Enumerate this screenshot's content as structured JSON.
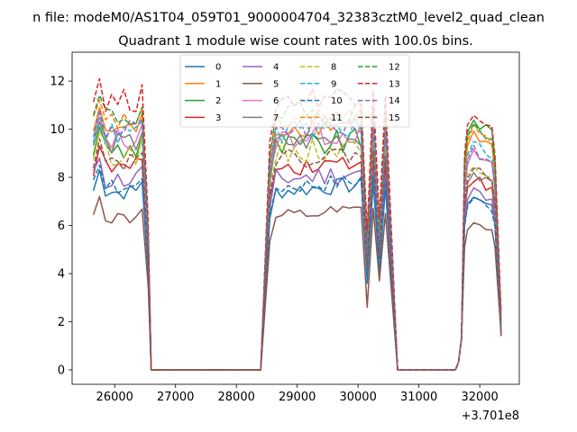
{
  "chart_data": {
    "type": "line",
    "suptitle": "n file: modeM0/AS1T04_059T01_9000004704_32383cztM0_level2_quad_clean",
    "title": "Quadrant 1 module wise count rates with 100.0s bins.",
    "xlabel": "",
    "ylabel": "",
    "x_offset_label": "+3.701e8",
    "xlim": [
      25300,
      32650
    ],
    "ylim": [
      -0.6,
      13.2
    ],
    "xticks": [
      26000,
      27000,
      28000,
      29000,
      30000,
      31000,
      32000
    ],
    "xtick_labels": [
      "26000",
      "27000",
      "28000",
      "29000",
      "30000",
      "31000",
      "32000"
    ],
    "yticks": [
      0,
      2,
      4,
      6,
      8,
      10,
      12
    ],
    "ytick_labels": [
      "0",
      "2",
      "4",
      "6",
      "8",
      "10",
      "12"
    ],
    "grid": false,
    "legend_position": "upper-center",
    "segments": [
      {
        "start": 25650,
        "n": 10
      },
      {
        "start": 28550,
        "n": 20
      },
      {
        "start": 31750,
        "n": 6
      }
    ],
    "series": [
      {
        "name": "0",
        "color": "#1f77b4",
        "dash": false,
        "base": 7.4,
        "noise": 0.35,
        "peak_a": 10.7,
        "peak_b": 10.2,
        "peak_c": 7.1,
        "low_1": 3.6,
        "low_2": 4.1,
        "end": 1.5
      },
      {
        "name": "1",
        "color": "#ff7f0e",
        "dash": false,
        "base": 10.0,
        "noise": 0.45,
        "peak_a": 10.7,
        "peak_b": 10.2,
        "peak_c": 9.6,
        "low_1": 5.2,
        "low_2": 5.8,
        "end": 2.2
      },
      {
        "name": "2",
        "color": "#2ca02c",
        "dash": false,
        "base": 9.2,
        "noise": 0.55,
        "peak_a": 10.8,
        "peak_b": 10.3,
        "peak_c": 10.2,
        "low_1": 4.8,
        "low_2": 5.4,
        "end": 1.8
      },
      {
        "name": "3",
        "color": "#d62728",
        "dash": false,
        "base": 8.4,
        "noise": 0.4,
        "peak_a": 10.9,
        "peak_b": 10.4,
        "peak_c": 7.8,
        "low_1": 4.3,
        "low_2": 4.9,
        "end": 1.4
      },
      {
        "name": "4",
        "color": "#9467bd",
        "dash": false,
        "base": 7.9,
        "noise": 0.45,
        "peak_a": 10.5,
        "peak_b": 10.0,
        "peak_c": 7.3,
        "low_1": 4.1,
        "low_2": 4.6,
        "end": 1.5
      },
      {
        "name": "5",
        "color": "#8c564b",
        "dash": false,
        "base": 6.3,
        "noise": 0.3,
        "peak_a": 10.6,
        "peak_b": 10.1,
        "peak_c": 6.0,
        "low_1": 2.6,
        "low_2": 3.7,
        "end": 1.5
      },
      {
        "name": "6",
        "color": "#e377c2",
        "dash": false,
        "base": 9.6,
        "noise": 0.5,
        "peak_a": 10.7,
        "peak_b": 10.2,
        "peak_c": 8.8,
        "low_1": 4.6,
        "low_2": 5.3,
        "end": 1.9
      },
      {
        "name": "7",
        "color": "#7f7f7f",
        "dash": false,
        "base": 9.4,
        "noise": 0.45,
        "peak_a": 10.6,
        "peak_b": 10.1,
        "peak_c": 8.0,
        "low_1": 4.4,
        "low_2": 5.0,
        "end": 1.6
      },
      {
        "name": "8",
        "color": "#bcbd22",
        "dash": true,
        "base": 9.0,
        "noise": 0.5,
        "peak_a": 10.8,
        "peak_b": 10.3,
        "peak_c": 8.4,
        "low_1": 5.0,
        "low_2": 5.5,
        "end": 2.0
      },
      {
        "name": "9",
        "color": "#17becf",
        "dash": true,
        "base": 9.8,
        "noise": 0.45,
        "peak_a": 10.9,
        "peak_b": 10.4,
        "peak_c": 9.2,
        "low_1": 4.0,
        "low_2": 4.5,
        "end": 1.7
      },
      {
        "name": "10",
        "color": "#1f77b4",
        "dash": true,
        "base": 7.6,
        "noise": 0.35,
        "peak_a": 10.4,
        "peak_b": 10.0,
        "peak_c": 7.0,
        "low_1": 3.9,
        "low_2": 4.4,
        "end": 1.6
      },
      {
        "name": "11",
        "color": "#ff7f0e",
        "dash": true,
        "base": 10.3,
        "noise": 0.45,
        "peak_a": 10.8,
        "peak_b": 10.3,
        "peak_c": 9.8,
        "low_1": 5.4,
        "low_2": 6.0,
        "end": 2.3
      },
      {
        "name": "12",
        "color": "#2ca02c",
        "dash": true,
        "base": 10.5,
        "noise": 0.5,
        "peak_a": 11.0,
        "peak_b": 10.5,
        "peak_c": 10.0,
        "low_1": 5.1,
        "low_2": 5.7,
        "end": 2.0
      },
      {
        "name": "13",
        "color": "#d62728",
        "dash": true,
        "base": 11.2,
        "noise": 0.5,
        "peak_a": 11.5,
        "peak_b": 10.6,
        "peak_c": 10.5,
        "low_1": 5.8,
        "low_2": 6.3,
        "end": 2.4
      },
      {
        "name": "14",
        "color": "#9467bd",
        "dash": true,
        "base": 9.9,
        "noise": 0.5,
        "peak_a": 10.6,
        "peak_b": 10.1,
        "peak_c": 9.0,
        "low_1": 4.7,
        "low_2": 5.2,
        "end": 1.8
      },
      {
        "name": "15",
        "color": "#8c564b",
        "dash": true,
        "base": 8.7,
        "noise": 0.4,
        "peak_a": 10.5,
        "peak_b": 10.0,
        "peak_c": 8.2,
        "low_1": 4.3,
        "low_2": 4.8,
        "end": 1.6
      }
    ]
  }
}
